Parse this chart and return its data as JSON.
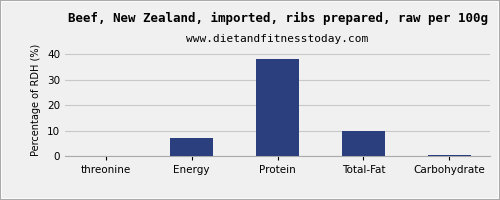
{
  "title": "Beef, New Zealand, imported, ribs prepared, raw per 100g",
  "subtitle": "www.dietandfitnesstoday.com",
  "categories": [
    "threonine",
    "Energy",
    "Protein",
    "Total-Fat",
    "Carbohydrate"
  ],
  "values": [
    0,
    7,
    38,
    10,
    0.5
  ],
  "bar_color": "#2b3f7e",
  "ylabel": "Percentage of RDH (%)",
  "ylim": [
    0,
    44
  ],
  "yticks": [
    0,
    10,
    20,
    30,
    40
  ],
  "background_color": "#f0f0f0",
  "plot_background": "#f0f0f0",
  "title_fontsize": 9,
  "subtitle_fontsize": 8,
  "ylabel_fontsize": 7,
  "tick_fontsize": 7.5,
  "grid_color": "#c8c8c8",
  "border_color": "#aaaaaa"
}
